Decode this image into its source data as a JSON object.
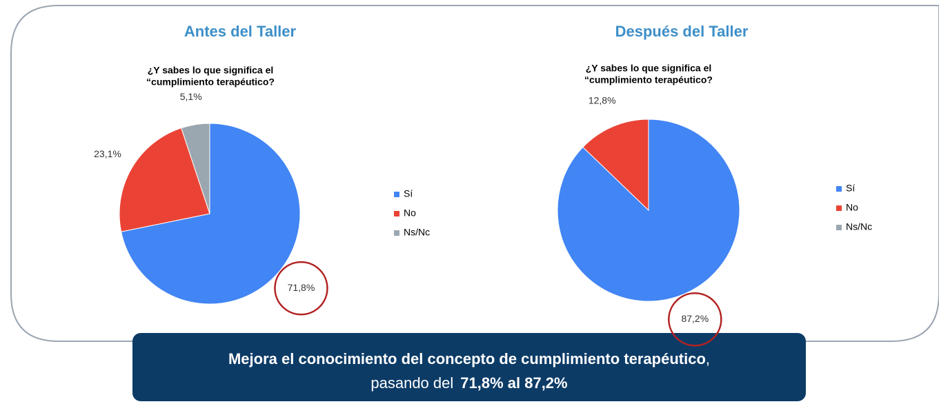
{
  "chart_data": [
    {
      "type": "pie",
      "section_title": "Antes del Taller",
      "title": [
        "¿Y sabes lo que significa el",
        "“cumplimiento terapéutico?"
      ],
      "categories": [
        "Sí",
        "No",
        "Ns/Nc"
      ],
      "values": [
        71.8,
        23.1,
        5.1
      ],
      "value_labels": [
        "71,8%",
        "23,1%",
        "5,1%"
      ],
      "colors": [
        "#4285f4",
        "#ea4335",
        "#9aa7b0"
      ],
      "legend": "right"
    },
    {
      "type": "pie",
      "section_title": "Después del Taller",
      "title": [
        "¿Y sabes lo que significa el",
        "“cumplimiento terapéutico?"
      ],
      "categories": [
        "Sí",
        "No",
        "Ns/Nc"
      ],
      "values": [
        87.2,
        12.8,
        0
      ],
      "value_labels": [
        "87,2%",
        "12,8%",
        null
      ],
      "colors": [
        "#4285f4",
        "#ea4335",
        "#9aa7b0"
      ],
      "legend": "right"
    }
  ],
  "summary": {
    "line1_bold": "Mejora el conocimiento del concepto de cumplimiento terapéutico",
    "line1_tail": ",",
    "line2_prefix": "pasando del",
    "line2_bold": "71,8% al 87,2%"
  }
}
